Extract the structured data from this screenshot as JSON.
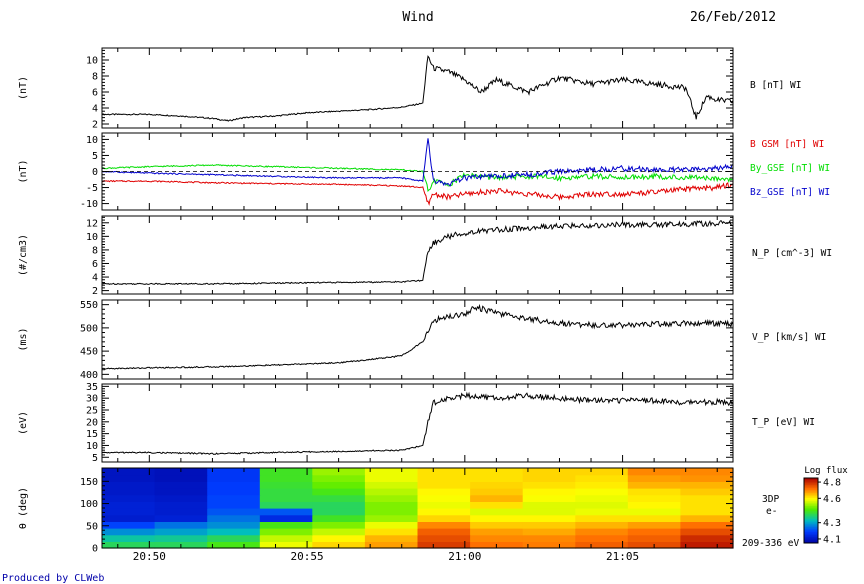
{
  "header": {
    "title": "Wind",
    "date": "26/Feb/2012"
  },
  "footer": {
    "credit": "Produced by CLWeb"
  },
  "colors": {
    "black": "#000000",
    "red": "#e00000",
    "green": "#00dd00",
    "blue": "#0000cc",
    "credit": "#0000aa"
  },
  "x_axis": {
    "range": [
      "20:48:30",
      "21:08:30"
    ],
    "ticks": [
      "20:50",
      "20:55",
      "21:00",
      "21:05"
    ]
  },
  "chart_data": [
    {
      "id": "b_total",
      "type": "line",
      "ylabel": "(nT)",
      "yticks": [
        2,
        4,
        6,
        8,
        10
      ],
      "ylim": [
        1.5,
        11.5
      ],
      "labels": [
        {
          "text": "B [nT] WI",
          "color": "#000000"
        }
      ],
      "series": [
        {
          "color": "#000000",
          "x": [
            "20:48:30",
            "20:50",
            "20:51",
            "20:52",
            "20:52:30",
            "20:53",
            "20:54",
            "20:55",
            "20:56",
            "20:57",
            "20:58",
            "20:58:40",
            "20:58:50",
            "20:59",
            "20:59:30",
            "21:00",
            "21:00:30",
            "21:01",
            "21:02",
            "21:03",
            "21:04",
            "21:05",
            "21:06",
            "21:07",
            "21:07:20",
            "21:07:40",
            "21:08",
            "21:08:30"
          ],
          "y": [
            3.2,
            3.2,
            3.0,
            2.7,
            2.4,
            2.8,
            3.0,
            3.4,
            3.6,
            3.8,
            4.1,
            4.6,
            10.5,
            9.0,
            8.5,
            7.5,
            6.0,
            7.5,
            6.0,
            7.8,
            7.0,
            7.5,
            7.0,
            6.5,
            2.8,
            5.5,
            5.0,
            4.8
          ]
        }
      ]
    },
    {
      "id": "b_gsm_components",
      "type": "line",
      "ylabel": "(nT)",
      "yticks": [
        -10,
        -5,
        0,
        5,
        10
      ],
      "ylim": [
        -12,
        12
      ],
      "labels": [
        {
          "text": "B GSM [nT] WI",
          "color": "#e00000"
        },
        {
          "text": "By_GSE [nT] WI",
          "color": "#00dd00"
        },
        {
          "text": "Bz_GSE [nT] WI",
          "color": "#0000cc"
        }
      ],
      "series": [
        {
          "color": "#e00000",
          "x": [
            "20:48:30",
            "20:50",
            "20:52",
            "20:54",
            "20:56",
            "20:58",
            "20:58:40",
            "20:58:50",
            "20:59",
            "20:59:30",
            "21:00",
            "21:01",
            "21:02",
            "21:03",
            "21:04",
            "21:05",
            "21:06",
            "21:07",
            "21:08",
            "21:08:30"
          ],
          "y": [
            -3,
            -3,
            -3.5,
            -3.8,
            -4,
            -4.5,
            -5,
            -10,
            -7,
            -8,
            -7,
            -6,
            -7,
            -8,
            -7,
            -7,
            -6.5,
            -5.5,
            -5,
            -4
          ]
        },
        {
          "color": "#00dd00",
          "x": [
            "20:48:30",
            "20:50",
            "20:52",
            "20:54",
            "20:56",
            "20:58",
            "20:58:40",
            "20:58:50",
            "20:59",
            "20:59:30",
            "21:00",
            "21:01",
            "21:02",
            "21:03",
            "21:04",
            "21:05",
            "21:06",
            "21:07",
            "21:08",
            "21:08:30"
          ],
          "y": [
            1,
            1.5,
            2,
            1.5,
            1,
            0.5,
            0,
            -6,
            -3,
            -4,
            -1,
            -2,
            -1.5,
            -2,
            -1.5,
            -1.8,
            -1.5,
            -2,
            -2,
            -2.5
          ]
        },
        {
          "color": "#0000cc",
          "x": [
            "20:48:30",
            "20:50",
            "20:52",
            "20:54",
            "20:56",
            "20:58",
            "20:58:40",
            "20:58:50",
            "20:59",
            "20:59:30",
            "21:00",
            "21:01",
            "21:02",
            "21:03",
            "21:04",
            "21:05",
            "21:06",
            "21:07",
            "21:08",
            "21:08:30"
          ],
          "y": [
            0,
            -0.5,
            -1,
            -1.5,
            -2,
            -2,
            -3,
            10,
            -3,
            -4,
            -2,
            -1.5,
            -1,
            0,
            0.5,
            1,
            0.5,
            0.5,
            1,
            1.5
          ]
        }
      ]
    },
    {
      "id": "proton_density",
      "type": "line",
      "ylabel": "(#/cm3)",
      "yticks": [
        2,
        4,
        6,
        8,
        10,
        12
      ],
      "ylim": [
        1.5,
        13
      ],
      "labels": [
        {
          "text": "N_P [cm^-3] WI",
          "color": "#000000"
        }
      ],
      "series": [
        {
          "color": "#000000",
          "x": [
            "20:48:30",
            "20:50",
            "20:52",
            "20:54",
            "20:56",
            "20:58",
            "20:58:40",
            "20:58:50",
            "20:59",
            "20:59:30",
            "21:00",
            "21:01",
            "21:02",
            "21:03",
            "21:04",
            "21:05",
            "21:06",
            "21:07",
            "21:08",
            "21:08:30"
          ],
          "y": [
            3,
            3,
            3,
            3.1,
            3.2,
            3.3,
            3.5,
            8,
            9,
            10,
            10.5,
            11,
            11.2,
            11.5,
            11.6,
            11.7,
            11.7,
            11.8,
            11.9,
            11.9
          ]
        }
      ]
    },
    {
      "id": "proton_velocity",
      "type": "line",
      "ylabel": "(ms)",
      "yticks": [
        400,
        450,
        500,
        550
      ],
      "ylim": [
        390,
        560
      ],
      "labels": [
        {
          "text": "V_P [km/s] WI",
          "color": "#000000"
        }
      ],
      "series": [
        {
          "color": "#000000",
          "x": [
            "20:48:30",
            "20:50",
            "20:52",
            "20:54",
            "20:56",
            "20:57",
            "20:58",
            "20:58:40",
            "20:58:50",
            "20:59",
            "20:59:30",
            "21:00",
            "21:00:20",
            "21:01",
            "21:02",
            "21:03",
            "21:04",
            "21:05",
            "21:06",
            "21:07",
            "21:08",
            "21:08:30"
          ],
          "y": [
            412,
            414,
            416,
            420,
            425,
            432,
            440,
            470,
            490,
            515,
            525,
            530,
            545,
            532,
            520,
            510,
            506,
            506,
            508,
            510,
            510,
            508
          ]
        }
      ]
    },
    {
      "id": "proton_temperature",
      "type": "line",
      "ylabel": "(eV)",
      "yticks": [
        5,
        10,
        15,
        20,
        25,
        30,
        35
      ],
      "ylim": [
        3,
        36
      ],
      "labels": [
        {
          "text": "T_P [eV] WI",
          "color": "#000000"
        }
      ],
      "series": [
        {
          "color": "#000000",
          "x": [
            "20:48:30",
            "20:50",
            "20:52",
            "20:54",
            "20:56",
            "20:58",
            "20:58:40",
            "20:58:50",
            "20:59",
            "20:59:30",
            "21:00",
            "21:01",
            "21:02",
            "21:03",
            "21:04",
            "21:05",
            "21:06",
            "21:07",
            "21:08",
            "21:08:30"
          ],
          "y": [
            7,
            7,
            6.5,
            7,
            7.5,
            8,
            10,
            20,
            28,
            30,
            31,
            30,
            31,
            30,
            29,
            29,
            29,
            28,
            28.5,
            28
          ]
        }
      ]
    },
    {
      "id": "pitch_angle_spectrogram",
      "type": "heatmap",
      "ylabel": "θ (deg)",
      "yticks": [
        0,
        50,
        100,
        150
      ],
      "ylim": [
        0,
        180
      ],
      "labels": [
        {
          "text": "3DP",
          "color": "#000000"
        },
        {
          "text": "e-",
          "color": "#000000"
        },
        {
          "text": "209-336 eV",
          "color": "#000000"
        }
      ],
      "colorbar": {
        "title": "Log flux",
        "ticks": [
          4.1,
          4.3,
          4.6,
          4.8
        ],
        "range": [
          4.05,
          4.85
        ]
      },
      "x_edges": [
        "20:48:30",
        "20:50:10",
        "20:51:50",
        "20:53:30",
        "20:55:10",
        "20:56:50",
        "20:58:30",
        "21:00:10",
        "21:01:50",
        "21:03:30",
        "21:05:10",
        "21:06:50",
        "21:08:30"
      ],
      "y_edges": [
        0,
        15,
        30,
        45,
        60,
        75,
        90,
        105,
        120,
        135,
        150,
        165,
        180
      ],
      "values": [
        [
          4.4,
          4.4,
          4.45,
          4.58,
          4.63,
          4.68,
          4.78,
          4.72,
          4.71,
          4.74,
          4.76,
          4.82
        ],
        [
          4.35,
          4.36,
          4.4,
          4.55,
          4.6,
          4.66,
          4.76,
          4.7,
          4.7,
          4.72,
          4.74,
          4.8
        ],
        [
          4.28,
          4.3,
          4.33,
          4.5,
          4.55,
          4.62,
          4.74,
          4.68,
          4.67,
          4.7,
          4.72,
          4.76
        ],
        [
          4.2,
          4.25,
          4.28,
          4.45,
          4.5,
          4.58,
          4.7,
          4.64,
          4.64,
          4.66,
          4.68,
          4.72
        ],
        [
          4.12,
          4.13,
          4.25,
          4.15,
          4.44,
          4.52,
          4.63,
          4.6,
          4.6,
          4.62,
          4.62,
          4.66
        ],
        [
          4.13,
          4.12,
          4.22,
          4.22,
          4.4,
          4.5,
          4.6,
          4.57,
          4.57,
          4.58,
          4.58,
          4.62
        ],
        [
          4.13,
          4.12,
          4.2,
          4.4,
          4.4,
          4.5,
          4.58,
          4.62,
          4.57,
          4.57,
          4.6,
          4.62
        ],
        [
          4.12,
          4.11,
          4.2,
          4.42,
          4.42,
          4.52,
          4.59,
          4.66,
          4.59,
          4.58,
          4.61,
          4.62
        ],
        [
          4.11,
          4.1,
          4.19,
          4.42,
          4.45,
          4.54,
          4.6,
          4.64,
          4.6,
          4.59,
          4.62,
          4.64
        ],
        [
          4.11,
          4.1,
          4.19,
          4.43,
          4.48,
          4.56,
          4.62,
          4.63,
          4.62,
          4.61,
          4.66,
          4.66
        ],
        [
          4.1,
          4.09,
          4.18,
          4.44,
          4.5,
          4.58,
          4.62,
          4.62,
          4.63,
          4.62,
          4.68,
          4.69
        ],
        [
          4.1,
          4.09,
          4.18,
          4.44,
          4.52,
          4.58,
          4.62,
          4.62,
          4.63,
          4.63,
          4.7,
          4.7
        ]
      ]
    }
  ]
}
